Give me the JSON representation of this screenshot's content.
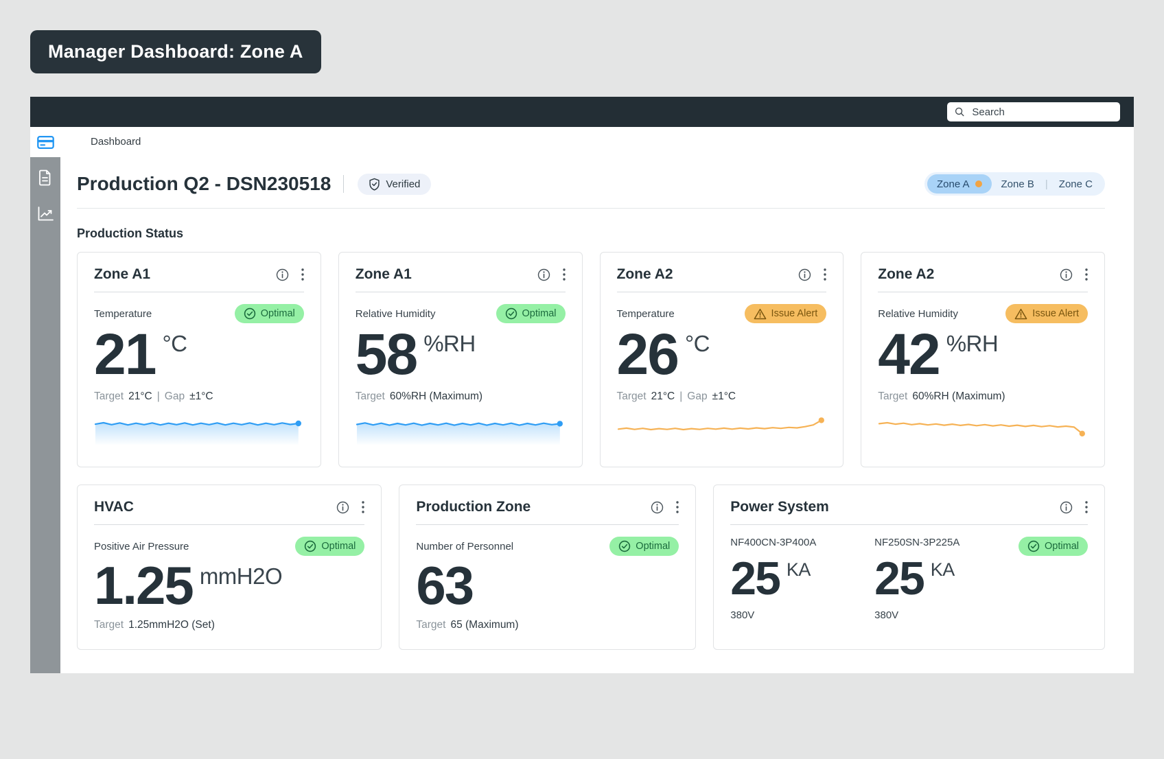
{
  "title_chip": "Manager Dashboard: Zone A",
  "header": {
    "search_placeholder": "Search"
  },
  "breadcrumb": "Dashboard",
  "sidebar": {
    "icons": [
      "dashboard-card-icon",
      "document-icon",
      "trend-chart-icon"
    ]
  },
  "page_header": {
    "title": "Production Q2 - DSN230518",
    "verified_label": "Verified",
    "tab_separator": "|",
    "tabs": [
      {
        "label": "Zone A",
        "active": true,
        "has_orange_dot": true
      },
      {
        "label": "Zone B",
        "active": false
      },
      {
        "label": "Zone C",
        "active": false
      }
    ]
  },
  "section_title": "Production Status",
  "cards_row1": [
    {
      "title": "Zone A1",
      "metric": "Temperature",
      "status": "Optimal",
      "status_type": "optimal",
      "value": "21",
      "unit": "°C",
      "target_label": "Target",
      "target_value": "21°C",
      "sep": "|",
      "gap_label": "Gap",
      "gap_value": "±1°C"
    },
    {
      "title": "Zone A1",
      "metric": "Relative Humidity",
      "status": "Optimal",
      "status_type": "optimal",
      "value": "58",
      "unit": "%RH",
      "target_label": "Target",
      "target_value": "60%RH (Maximum)"
    },
    {
      "title": "Zone A2",
      "metric": "Temperature",
      "status": "Issue Alert",
      "status_type": "alert",
      "value": "26",
      "unit": "°C",
      "target_label": "Target",
      "target_value": "21°C",
      "sep": "|",
      "gap_label": "Gap",
      "gap_value": "±1°C"
    },
    {
      "title": "Zone A2",
      "metric": "Relative Humidity",
      "status": "Issue Alert",
      "status_type": "alert",
      "value": "42",
      "unit": "%RH",
      "target_label": "Target",
      "target_value": "60%RH (Maximum)"
    }
  ],
  "cards_row2": [
    {
      "title": "HVAC",
      "metric": "Positive Air Pressure",
      "status": "Optimal",
      "status_type": "optimal",
      "value": "1.25",
      "unit": "mmH2O",
      "target_label": "Target",
      "target_value": "1.25mmH2O (Set)"
    },
    {
      "title": "Production Zone",
      "metric": "Number of Personnel",
      "status": "Optimal",
      "status_type": "optimal",
      "value": "63",
      "unit": "",
      "target_label": "Target",
      "target_value": "65 (Maximum)"
    },
    {
      "title": "Power System",
      "status": "Optimal",
      "status_type": "optimal",
      "breakers": [
        {
          "model": "NF400CN-3P400A",
          "value": "25",
          "unit": "KA",
          "voltage": "380V"
        },
        {
          "model": "NF250SN-3P225A",
          "value": "25",
          "unit": "KA",
          "voltage": "380V"
        }
      ]
    }
  ],
  "colors": {
    "chip_and_topbar": "#28333a",
    "sidebar_gray": "#8f9599",
    "accent_blue": "#2f9df4",
    "accent_orange": "#f6b255",
    "badge_green_bg": "#95f0a5",
    "badge_green_text": "#1b6b3d",
    "badge_amber_bg": "#f6bd60",
    "badge_amber_text": "#7a560f",
    "tab_group_bg": "#e9f2fc",
    "tab_active_bg": "#a9d3f7",
    "active_tab_dot": "#f2a444",
    "dark_text": "#26323a",
    "muted_text": "#8a939a"
  },
  "chart_data": [
    {
      "type": "line",
      "name": "zone-a1-temperature-sparkline",
      "color": "#2f9df4",
      "area_fill": true,
      "end_dot": true,
      "axes_shown": false,
      "description": "flat small wave around target 21C",
      "points": [
        58,
        64,
        56,
        63,
        55,
        62,
        56,
        63,
        55,
        62,
        56,
        63,
        55,
        62,
        56,
        63,
        55,
        62,
        56,
        63,
        55,
        62,
        56,
        63,
        57,
        61
      ]
    },
    {
      "type": "line",
      "name": "zone-a1-humidity-sparkline",
      "color": "#2f9df4",
      "area_fill": true,
      "end_dot": true,
      "axes_shown": false,
      "description": "flat small wave around 58 RH",
      "points": [
        57,
        63,
        55,
        62,
        54,
        61,
        55,
        62,
        54,
        61,
        55,
        62,
        54,
        61,
        55,
        62,
        54,
        61,
        55,
        62,
        54,
        61,
        55,
        62,
        56,
        60
      ]
    },
    {
      "type": "line",
      "name": "zone-a2-temperature-sparkline",
      "color": "#f6b255",
      "area_fill": false,
      "end_dot": true,
      "axes_shown": false,
      "description": "flat wave rising sharply at the end (issue)",
      "points": [
        38,
        42,
        37,
        41,
        36,
        40,
        37,
        41,
        36,
        40,
        37,
        41,
        38,
        42,
        38,
        42,
        39,
        43,
        40,
        44,
        41,
        45,
        43,
        48,
        55,
        74
      ]
    },
    {
      "type": "line",
      "name": "zone-a2-humidity-sparkline",
      "color": "#f6b255",
      "area_fill": false,
      "end_dot": true,
      "axes_shown": false,
      "description": "gently declining wave dropping at the end (issue)",
      "points": [
        60,
        64,
        58,
        62,
        56,
        60,
        55,
        59,
        54,
        58,
        53,
        57,
        52,
        56,
        51,
        55,
        50,
        54,
        49,
        53,
        48,
        52,
        47,
        50,
        46,
        20
      ]
    }
  ]
}
